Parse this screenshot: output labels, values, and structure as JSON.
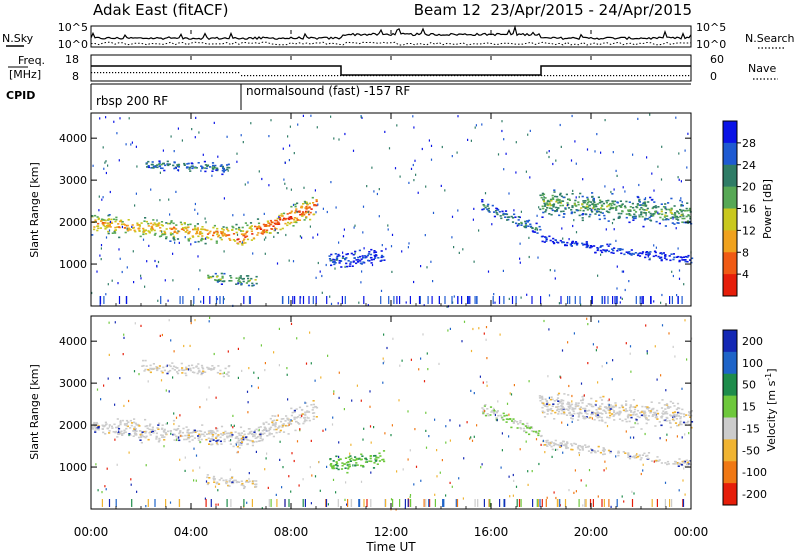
{
  "header": {
    "title_left": "Adak East (fitACF)",
    "title_right": "Beam 12  23/Apr/2015 - 24/Apr/2015"
  },
  "strips": {
    "nsky_label": "N.Sky",
    "nsky_ticks": [
      "10^5",
      "10^0"
    ],
    "nsearch_label": "N.Search",
    "nsearch_ticks": [
      "10^5",
      "10^0"
    ],
    "freq_label": "Freq.",
    "freq_unit": "[MHz]",
    "freq_ticks": [
      "18",
      "8"
    ],
    "nave_label": "Nave",
    "nave_ticks": [
      "60",
      "0"
    ],
    "cpid_label": "CPID",
    "cpid_segments": [
      {
        "label": "rbsp 200 RF",
        "start_hour": 0,
        "end_hour": 6
      },
      {
        "label": "normalsound (fast) -157 RF",
        "start_hour": 6,
        "end_hour": 24
      }
    ]
  },
  "chart_data": [
    {
      "type": "heatmap",
      "panel": "power",
      "ylabel": "Slant Range [km]",
      "ylim": [
        0,
        4600
      ],
      "yticks": [
        "1000",
        "2000",
        "3000",
        "4000"
      ],
      "xlim_hours": [
        0,
        24
      ],
      "colorbar": {
        "label": "Power [dB]",
        "ticks": [
          "4",
          "8",
          "12",
          "16",
          "20",
          "24",
          "28"
        ],
        "colors": [
          "#0a14e6",
          "#1e5ad2",
          "#2f7c66",
          "#57a855",
          "#c9c81e",
          "#f0a21e",
          "#f05a14",
          "#e61e0a"
        ]
      },
      "bands": [
        {
          "x_start": 0.0,
          "x_end": 5.8,
          "y_start": 2000,
          "y_end": 1700,
          "width": 320,
          "level": 0.75
        },
        {
          "x_start": 5.8,
          "x_end": 9.0,
          "y_start": 1600,
          "y_end": 2400,
          "width": 380,
          "level": 0.9
        },
        {
          "x_start": 2.0,
          "x_end": 5.5,
          "y_start": 3400,
          "y_end": 3300,
          "width": 180,
          "level": 0.3
        },
        {
          "x_start": 4.6,
          "x_end": 6.6,
          "y_start": 700,
          "y_end": 600,
          "width": 180,
          "level": 0.5
        },
        {
          "x_start": 9.5,
          "x_end": 11.7,
          "y_start": 1100,
          "y_end": 1200,
          "width": 260,
          "level": 0.15
        },
        {
          "x_start": 15.6,
          "x_end": 18.0,
          "y_start": 2400,
          "y_end": 1800,
          "width": 200,
          "level": 0.3
        },
        {
          "x_start": 17.9,
          "x_end": 24.0,
          "y_start": 2500,
          "y_end": 2200,
          "width": 420,
          "level": 0.45
        },
        {
          "x_start": 18.0,
          "x_end": 24.0,
          "y_start": 1600,
          "y_end": 1100,
          "width": 160,
          "level": 0.1
        }
      ]
    },
    {
      "type": "heatmap",
      "panel": "velocity",
      "ylabel": "Slant Range [km]",
      "ylim": [
        0,
        4600
      ],
      "yticks": [
        "1000",
        "2000",
        "3000",
        "4000"
      ],
      "xlim_hours": [
        0,
        24
      ],
      "xticks": [
        "00:00",
        "04:00",
        "08:00",
        "12:00",
        "16:00",
        "20:00",
        "00:00"
      ],
      "xlabel": "Time UT",
      "colorbar": {
        "label": "Velocity [m s",
        "unit_sup": "-1",
        "unit_close": "]",
        "ticks": [
          "200",
          "100",
          "50",
          "15",
          "-15",
          "-50",
          "-100",
          "-200"
        ],
        "colors": [
          "#1428b4",
          "#1e64c8",
          "#1e8c4b",
          "#6ec83c",
          "#cccccc",
          "#f0b432",
          "#f07814",
          "#e61e0a"
        ]
      }
    }
  ]
}
